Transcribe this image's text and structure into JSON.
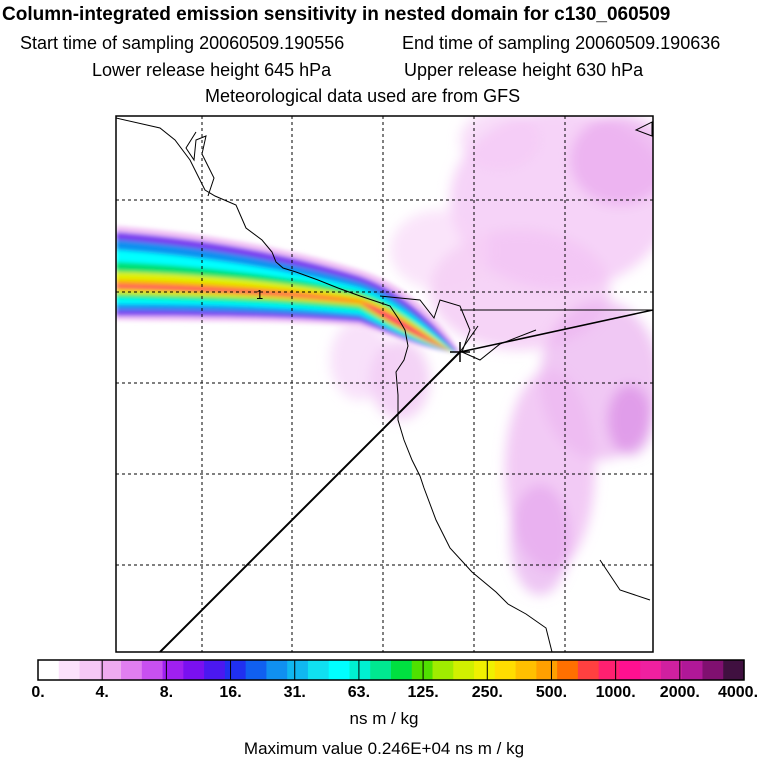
{
  "header": {
    "title": "Column-integrated emission sensitivity in nested domain for c130_060509",
    "start_label": "Start time of sampling 20060509.190556",
    "end_label": "End time of sampling 20060509.190636",
    "lower_label": "Lower release height  645 hPa",
    "upper_label": "Upper release height  630 hPa",
    "met_label": "Meteorological data used are from GFS"
  },
  "map": {
    "grid_label": "1",
    "receptor_marker": "plus-marker"
  },
  "colorbar": {
    "colors": [
      "#ffffff",
      "#fbe1fb",
      "#f5c8f5",
      "#eeaaf0",
      "#e07ef0",
      "#c850f0",
      "#a020f0",
      "#7a10f0",
      "#4b18f0",
      "#2030f0",
      "#1060f0",
      "#1090f0",
      "#10b8f0",
      "#10e0f0",
      "#00ffff",
      "#00f0d0",
      "#00e890",
      "#00e040",
      "#50e000",
      "#a0ec00",
      "#d0f000",
      "#f0f000",
      "#ffdd00",
      "#ffc000",
      "#ffa000",
      "#ff7000",
      "#ff4040",
      "#ff2070",
      "#ff1090",
      "#f020a0",
      "#d020a0",
      "#b01898",
      "#801070",
      "#401040"
    ],
    "tick_labels": [
      "0.",
      "4.",
      "8.",
      "16.",
      "31.",
      "63.",
      "125.",
      "250.",
      "500.",
      "1000.",
      "2000.",
      "4000."
    ],
    "units": "ns m / kg"
  },
  "footer": {
    "max_value": "Maximum value  0.246E+04 ns m / kg"
  },
  "chart_data": {
    "type": "heatmap",
    "title": "Column-integrated emission sensitivity in nested domain for c130_060509",
    "subtitle": [
      "Start time of sampling 20060509.190556",
      "End time of sampling 20060509.190636",
      "Lower release height  645 hPa",
      "Upper release height  630 hPa",
      "Meteorological data used are from GFS"
    ],
    "colorbar_levels": [
      0,
      4,
      8,
      16,
      31,
      63,
      125,
      250,
      500,
      1000,
      2000,
      4000
    ],
    "colorbar_units": "ns m / kg",
    "max_value": 2460,
    "grid": true,
    "features": [
      "coastline",
      "receptor location marked with plus",
      "dashed lat/lon grid",
      "plume extending west from receptor"
    ]
  }
}
